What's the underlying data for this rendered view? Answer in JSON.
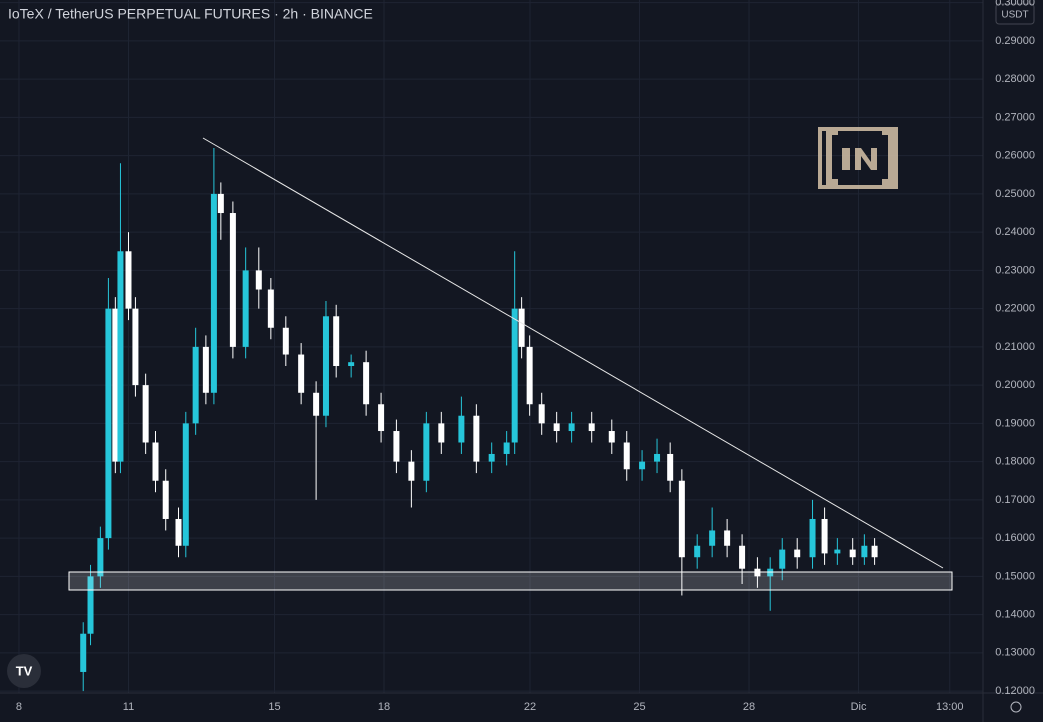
{
  "chart_data": {
    "type": "candlestick",
    "title": "IoTeX / TetherUS PERPETUAL FUTURES · 2h · BINANCE",
    "currency": "USDT",
    "up_color": "#26c6da",
    "down_color": "#ffffff",
    "xlim": [
      7.48,
      34.41
    ],
    "xticks": [
      {
        "value": 8,
        "label": "8"
      },
      {
        "value": 11,
        "label": "11"
      },
      {
        "value": 15,
        "label": "15"
      },
      {
        "value": 18,
        "label": "18"
      },
      {
        "value": 22,
        "label": "22"
      },
      {
        "value": 25,
        "label": "25"
      },
      {
        "value": 28,
        "label": "28"
      },
      {
        "value": 31,
        "label": "Dic"
      },
      {
        "value": 33.5,
        "label": "13:00"
      }
    ],
    "ylim": [
      0.1195,
      0.3007
    ],
    "yticks": [
      {
        "value": 0.12,
        "label": "0.12000"
      },
      {
        "value": 0.13,
        "label": "0.13000"
      },
      {
        "value": 0.14,
        "label": "0.14000"
      },
      {
        "value": 0.15,
        "label": "0.15000"
      },
      {
        "value": 0.16,
        "label": "0.16000"
      },
      {
        "value": 0.17,
        "label": "0.17000"
      },
      {
        "value": 0.18,
        "label": "0.18000"
      },
      {
        "value": 0.19,
        "label": "0.19000"
      },
      {
        "value": 0.2,
        "label": "0.20000"
      },
      {
        "value": 0.21,
        "label": "0.21000"
      },
      {
        "value": 0.22,
        "label": "0.22000"
      },
      {
        "value": 0.23,
        "label": "0.23000"
      },
      {
        "value": 0.24,
        "label": "0.24000"
      },
      {
        "value": 0.25,
        "label": "0.25000"
      },
      {
        "value": 0.26,
        "label": "0.26000"
      },
      {
        "value": 0.27,
        "label": "0.27000"
      },
      {
        "value": 0.28,
        "label": "0.28000"
      },
      {
        "value": 0.29,
        "label": "0.29000"
      },
      {
        "value": 0.3,
        "label": "0.30000"
      }
    ],
    "grid": true,
    "x": [
      9.76,
      9.96,
      10.23,
      10.45,
      10.64,
      10.78,
      11.0,
      11.19,
      11.47,
      11.74,
      12.02,
      12.37,
      12.57,
      12.84,
      13.12,
      13.34,
      13.53,
      13.86,
      14.21,
      14.57,
      14.9,
      15.31,
      15.73,
      16.14,
      16.41,
      16.69,
      17.1,
      17.51,
      17.92,
      18.34,
      18.75,
      19.16,
      19.57,
      20.12,
      20.53,
      20.95,
      21.36,
      21.58,
      21.77,
      21.99,
      22.32,
      22.73,
      23.14,
      23.69,
      24.24,
      24.65,
      25.07,
      25.48,
      25.84,
      26.16,
      26.58,
      26.99,
      27.4,
      27.81,
      28.23,
      28.58,
      28.91,
      29.32,
      29.74,
      30.07,
      30.42,
      30.84,
      31.16,
      31.44
    ],
    "open": [
      0.125,
      0.135,
      0.15,
      0.16,
      0.22,
      0.18,
      0.235,
      0.22,
      0.2,
      0.185,
      0.175,
      0.165,
      0.158,
      0.19,
      0.21,
      0.198,
      0.25,
      0.245,
      0.21,
      0.23,
      0.225,
      0.215,
      0.208,
      0.198,
      0.192,
      0.218,
      0.205,
      0.206,
      0.195,
      0.188,
      0.18,
      0.175,
      0.19,
      0.185,
      0.192,
      0.18,
      0.182,
      0.185,
      0.22,
      0.21,
      0.195,
      0.19,
      0.188,
      0.19,
      0.188,
      0.185,
      0.178,
      0.18,
      0.182,
      0.175,
      0.155,
      0.158,
      0.162,
      0.158,
      0.152,
      0.15,
      0.152,
      0.157,
      0.155,
      0.165,
      0.156,
      0.157,
      0.155,
      0.158
    ],
    "high": [
      0.138,
      0.153,
      0.163,
      0.228,
      0.223,
      0.258,
      0.24,
      0.223,
      0.203,
      0.188,
      0.178,
      0.168,
      0.193,
      0.215,
      0.213,
      0.262,
      0.253,
      0.248,
      0.236,
      0.236,
      0.228,
      0.218,
      0.211,
      0.201,
      0.222,
      0.221,
      0.208,
      0.209,
      0.198,
      0.191,
      0.183,
      0.193,
      0.193,
      0.197,
      0.195,
      0.185,
      0.188,
      0.235,
      0.223,
      0.213,
      0.198,
      0.193,
      0.193,
      0.193,
      0.191,
      0.188,
      0.183,
      0.186,
      0.185,
      0.178,
      0.161,
      0.168,
      0.165,
      0.161,
      0.155,
      0.155,
      0.16,
      0.16,
      0.17,
      0.168,
      0.16,
      0.16,
      0.161,
      0.16
    ],
    "low": [
      0.12,
      0.132,
      0.147,
      0.157,
      0.177,
      0.177,
      0.217,
      0.197,
      0.182,
      0.172,
      0.162,
      0.155,
      0.155,
      0.187,
      0.195,
      0.195,
      0.238,
      0.207,
      0.207,
      0.22,
      0.212,
      0.205,
      0.195,
      0.17,
      0.189,
      0.202,
      0.202,
      0.192,
      0.185,
      0.177,
      0.168,
      0.172,
      0.182,
      0.182,
      0.177,
      0.177,
      0.179,
      0.182,
      0.207,
      0.192,
      0.187,
      0.185,
      0.185,
      0.185,
      0.182,
      0.175,
      0.175,
      0.177,
      0.172,
      0.145,
      0.152,
      0.155,
      0.155,
      0.148,
      0.147,
      0.141,
      0.149,
      0.152,
      0.152,
      0.153,
      0.153,
      0.153,
      0.153,
      0.153
    ],
    "close": [
      0.135,
      0.15,
      0.16,
      0.22,
      0.18,
      0.235,
      0.22,
      0.2,
      0.185,
      0.175,
      0.165,
      0.158,
      0.19,
      0.21,
      0.198,
      0.25,
      0.245,
      0.21,
      0.23,
      0.225,
      0.215,
      0.208,
      0.198,
      0.192,
      0.218,
      0.205,
      0.206,
      0.195,
      0.188,
      0.18,
      0.175,
      0.19,
      0.185,
      0.192,
      0.18,
      0.182,
      0.185,
      0.22,
      0.21,
      0.195,
      0.19,
      0.188,
      0.19,
      0.188,
      0.185,
      0.178,
      0.18,
      0.182,
      0.175,
      0.155,
      0.158,
      0.162,
      0.158,
      0.152,
      0.15,
      0.152,
      0.157,
      0.155,
      0.165,
      0.156,
      0.157,
      0.155,
      0.158,
      0.155
    ]
  }
}
